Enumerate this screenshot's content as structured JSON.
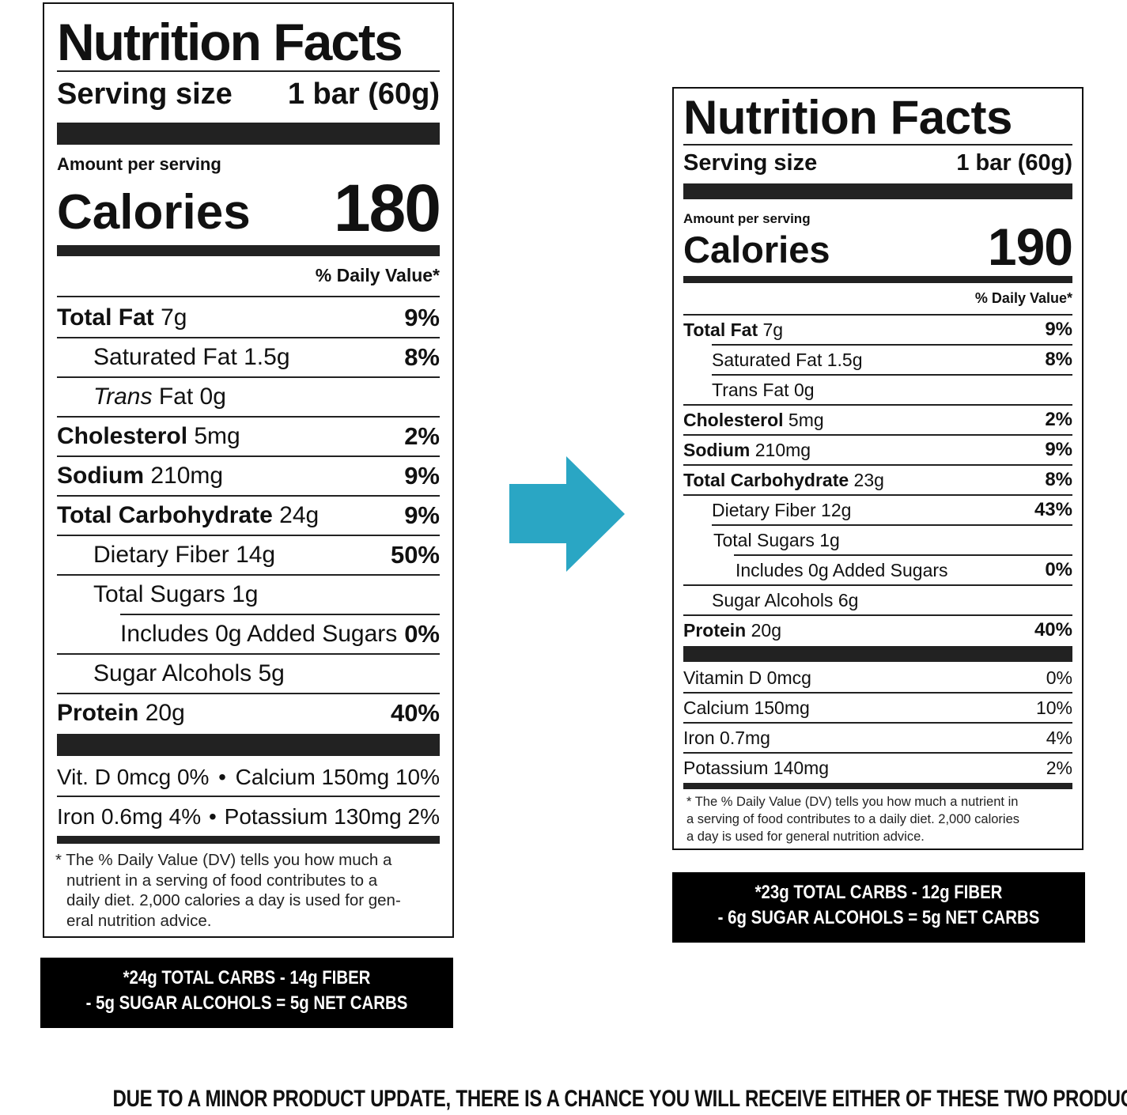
{
  "left_label": {
    "title": "Nutrition Facts",
    "serving_label": "Serving size",
    "serving_value": "1 bar (60g)",
    "amount_per_serving": "Amount per serving",
    "calories_label": "Calories",
    "calories_value": "180",
    "daily_value_header": "% Daily Value*",
    "rows": [
      {
        "name": "Total Fat",
        "amount": "7g",
        "dv": "9%"
      },
      {
        "name": "Saturated Fat",
        "amount": "1.5g",
        "dv": "8%"
      },
      {
        "name": "Trans",
        "name2": "Fat",
        "amount": "0g",
        "dv": ""
      },
      {
        "name": "Cholesterol",
        "amount": "5mg",
        "dv": "2%"
      },
      {
        "name": "Sodium",
        "amount": "210mg",
        "dv": "9%"
      },
      {
        "name": "Total Carbohydrate",
        "amount": "24g",
        "dv": "9%"
      },
      {
        "name": "Dietary Fiber",
        "amount": "14g",
        "dv": "50%"
      },
      {
        "name": "Total Sugars",
        "amount": "1g",
        "dv": ""
      },
      {
        "name": "Includes 0g Added Sugars",
        "amount": "",
        "dv": "0%"
      },
      {
        "name": "Sugar Alcohols",
        "amount": "5g",
        "dv": ""
      },
      {
        "name": "Protein",
        "amount": "20g",
        "dv": "40%"
      }
    ],
    "vitamins_line1_left": "Vit. D 0mcg 0%",
    "vitamins_line1_right": "Calcium 150mg 10%",
    "vitamins_line2_left": "Iron 0.6mg 4%",
    "vitamins_line2_right": "Potassium 130mg 2%",
    "bullet": "•",
    "footnote_lines": [
      "* The % Daily Value (DV) tells you how much a",
      "nutrient in a serving of food contributes to a",
      "daily diet. 2,000 calories a day is used for gen-",
      "eral nutrition advice."
    ]
  },
  "left_netcarbs": {
    "line1": "*24g TOTAL CARBS - 14g FIBER",
    "line2": "- 5g SUGAR ALCOHOLS = 5g NET CARBS"
  },
  "arrow": {
    "color": "#2aa6c4",
    "icon": "arrow-right-icon"
  },
  "right_label": {
    "title": "Nutrition Facts",
    "serving_label": "Serving size",
    "serving_value": "1 bar (60g)",
    "amount_per_serving": "Amount per serving",
    "calories_label": "Calories",
    "calories_value": "190",
    "daily_value_header": "% Daily Value*",
    "rows": [
      {
        "name": "Total Fat",
        "amount": "7g",
        "dv": "9%"
      },
      {
        "name": "Saturated Fat",
        "amount": "1.5g",
        "dv": "8%"
      },
      {
        "name": "Trans Fat",
        "amount": "0g",
        "dv": ""
      },
      {
        "name": "Cholesterol",
        "amount": "5mg",
        "dv": "2%"
      },
      {
        "name": "Sodium",
        "amount": "210mg",
        "dv": "9%"
      },
      {
        "name": "Total Carbohydrate",
        "amount": "23g",
        "dv": "8%"
      },
      {
        "name": "Dietary Fiber",
        "amount": "12g",
        "dv": "43%"
      },
      {
        "name": "Total Sugars",
        "amount": "1g",
        "dv": ""
      },
      {
        "name": "Includes 0g Added Sugars",
        "amount": "",
        "dv": "0%"
      },
      {
        "name": "Sugar Alcohols",
        "amount": "6g",
        "dv": ""
      },
      {
        "name": "Protein",
        "amount": "20g",
        "dv": "40%"
      }
    ],
    "vitamins": [
      {
        "name": "Vitamin D 0mcg",
        "dv": "0%"
      },
      {
        "name": "Calcium 150mg",
        "dv": "10%"
      },
      {
        "name": "Iron 0.7mg",
        "dv": "4%"
      },
      {
        "name": "Potassium 140mg",
        "dv": "2%"
      }
    ],
    "footnote_lines": [
      "* The % Daily Value (DV) tells you how much a nutrient in",
      "a serving of food contributes to a daily diet. 2,000 calories",
      "a day is used for general nutrition advice."
    ]
  },
  "right_netcarbs": {
    "line1": "*23g TOTAL CARBS - 12g FIBER",
    "line2": "- 6g SUGAR ALCOHOLS = 5g NET CARBS"
  },
  "bottom_notice": "DUE TO A MINOR PRODUCT UPDATE, THERE IS A CHANCE YOU WILL RECEIVE EITHER OF THESE TWO PRODUCTS"
}
